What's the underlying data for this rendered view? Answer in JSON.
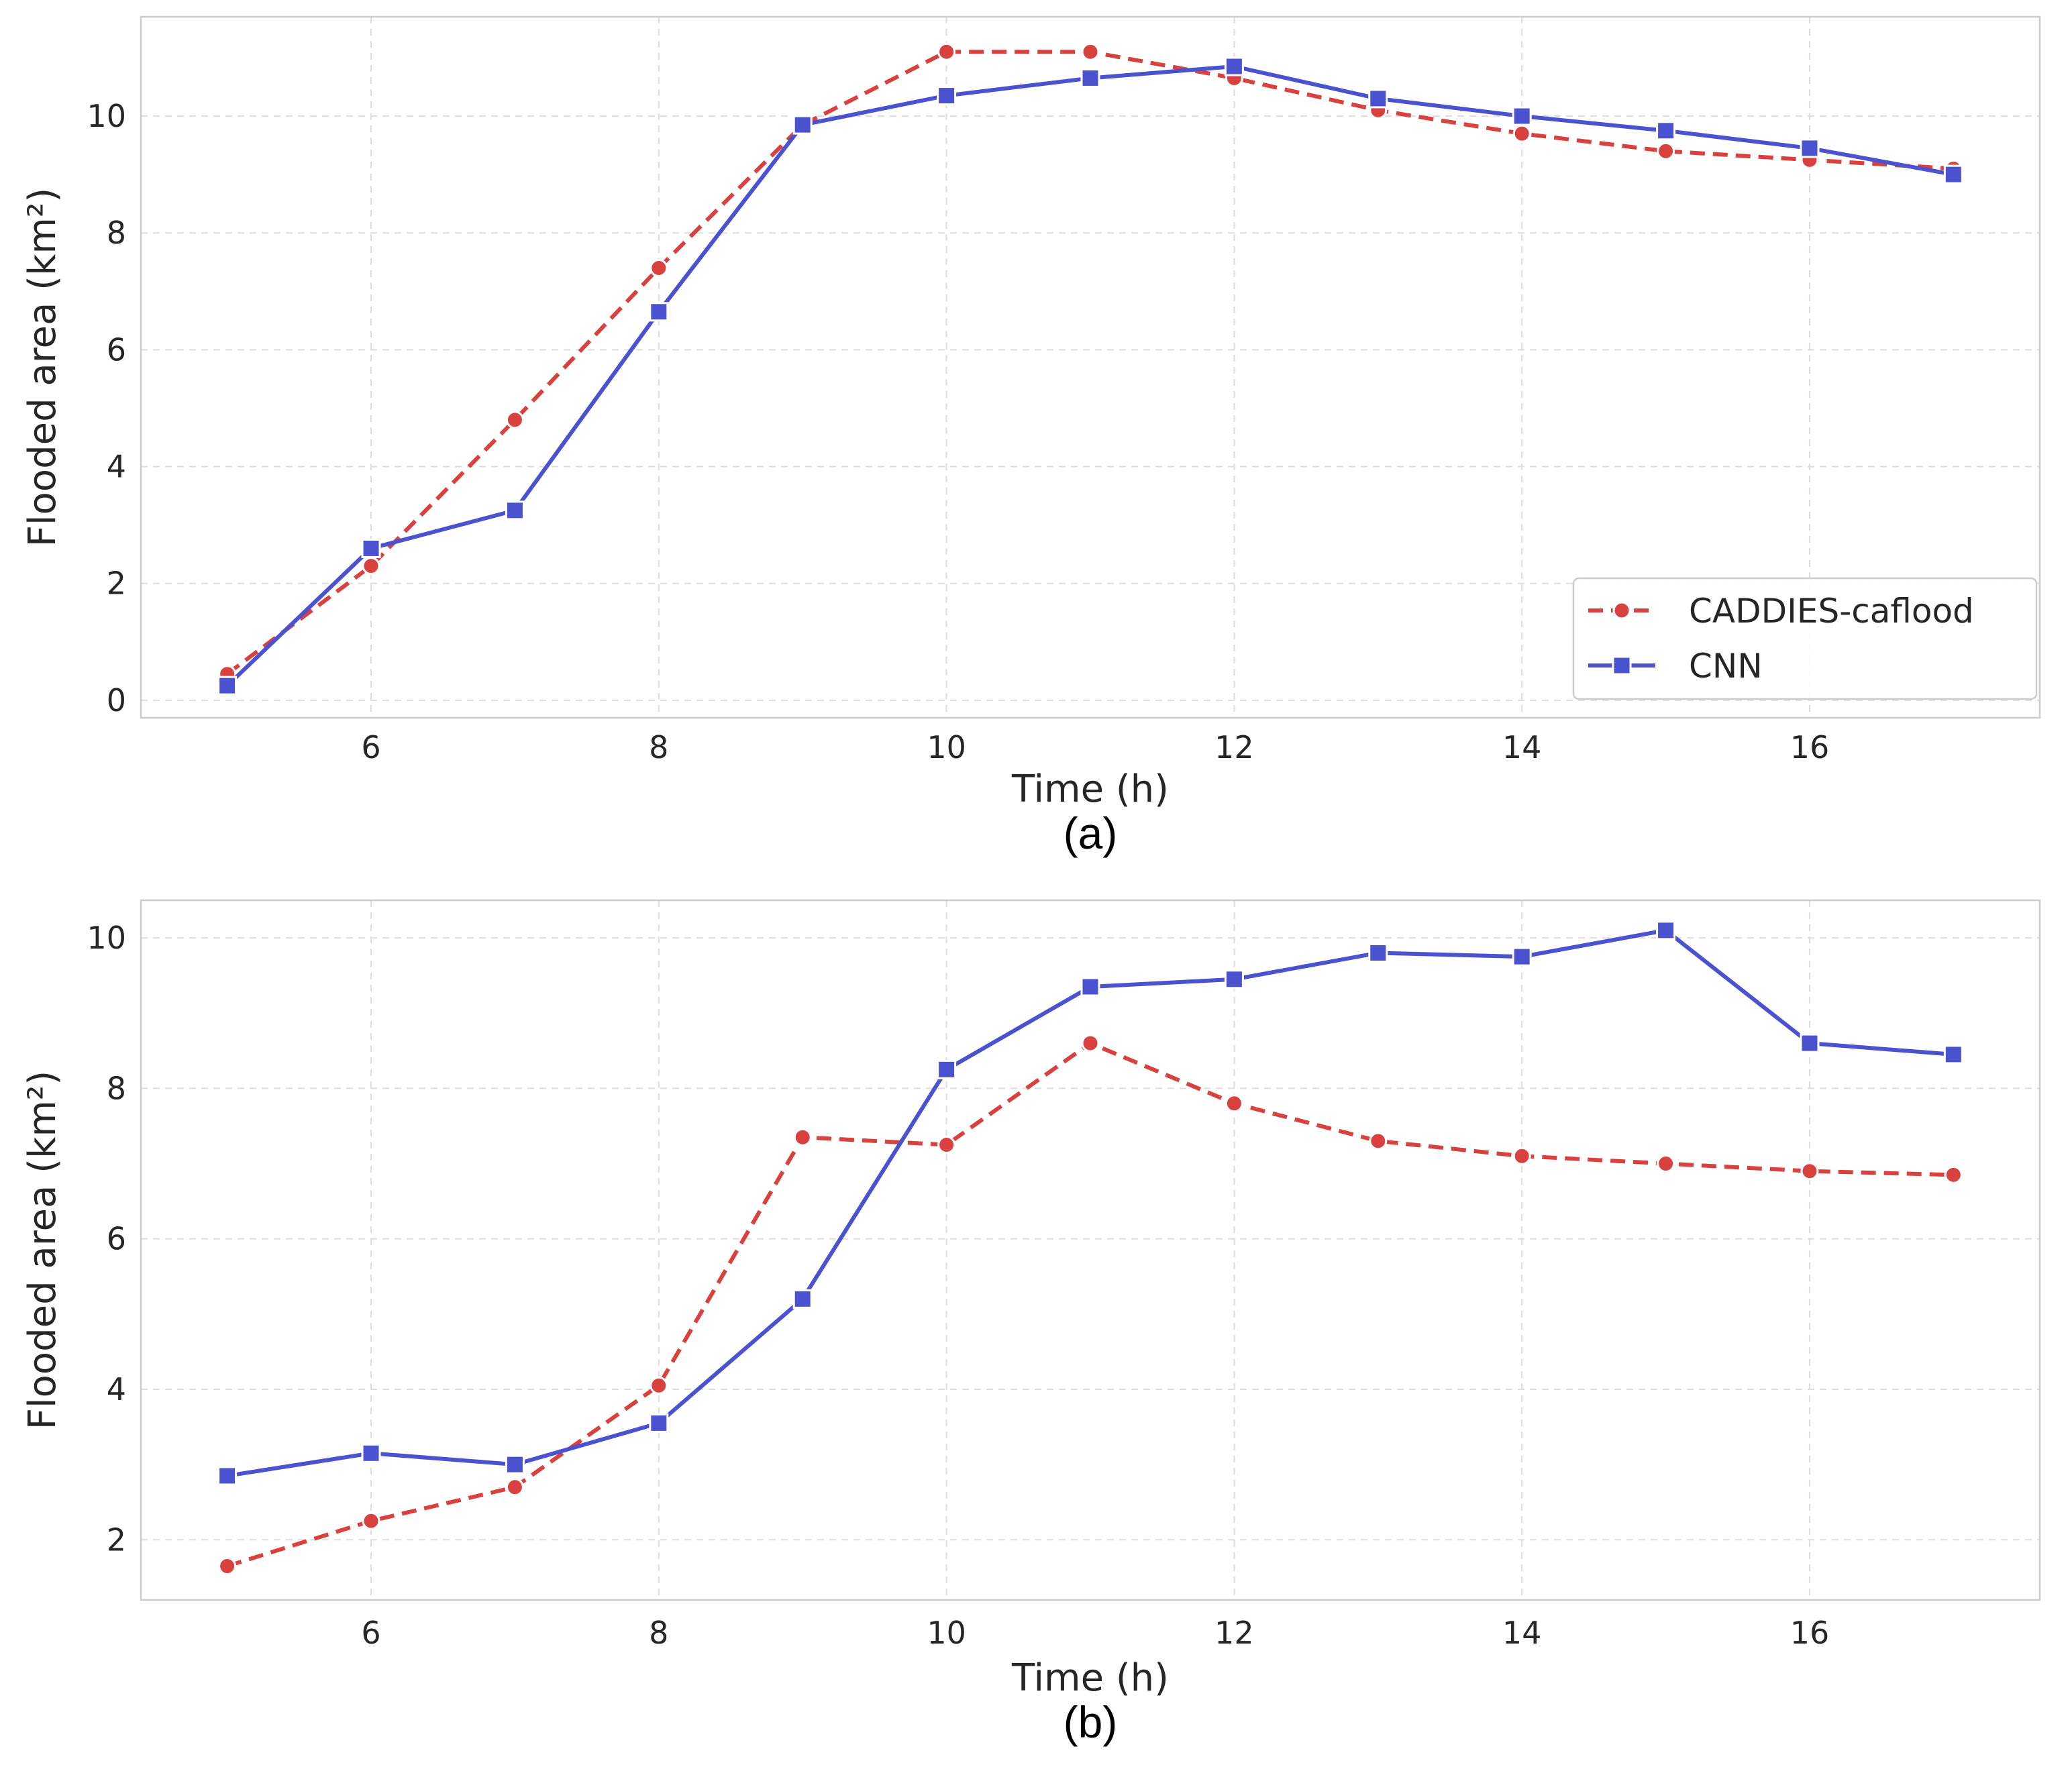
{
  "colors": {
    "caddies": "#d9413f",
    "cnn": "#4b52cf",
    "grid": "#dddddd",
    "frame": "#cccccc",
    "text": "#262626"
  },
  "legend": {
    "labels": [
      "CADDIES-caflood",
      "CNN"
    ],
    "placement": "lower-right"
  },
  "chart_data": [
    {
      "type": "line",
      "caption": "(a)",
      "xlabel": "Time (h)",
      "ylabel": "Flooded area (km²)",
      "x": [
        5,
        6,
        7,
        8,
        9,
        10,
        11,
        12,
        13,
        14,
        15,
        16,
        17
      ],
      "xlim": [
        4.4,
        17.6
      ],
      "ylim": [
        -0.3,
        11.7
      ],
      "xticks": [
        6,
        8,
        10,
        12,
        14,
        16
      ],
      "yticks": [
        0,
        2,
        4,
        6,
        8,
        10
      ],
      "grid": true,
      "series": [
        {
          "name": "CADDIES-caflood",
          "marker": "circle",
          "linestyle": "dashed",
          "values": [
            0.45,
            2.3,
            4.8,
            7.4,
            9.85,
            11.1,
            11.1,
            10.65,
            10.1,
            9.7,
            9.4,
            9.25,
            9.1
          ]
        },
        {
          "name": "CNN",
          "marker": "square",
          "linestyle": "solid",
          "values": [
            0.25,
            2.6,
            3.25,
            6.65,
            9.85,
            10.35,
            10.65,
            10.85,
            10.3,
            10.0,
            9.75,
            9.45,
            9.0
          ]
        }
      ]
    },
    {
      "type": "line",
      "caption": "(b)",
      "xlabel": "Time (h)",
      "ylabel": "Flooded area (km²)",
      "x": [
        5,
        6,
        7,
        8,
        9,
        10,
        11,
        12,
        13,
        14,
        15,
        16,
        17
      ],
      "xlim": [
        4.4,
        17.6
      ],
      "ylim": [
        1.2,
        10.5
      ],
      "xticks": [
        6,
        8,
        10,
        12,
        14,
        16
      ],
      "yticks": [
        2,
        4,
        6,
        8,
        10
      ],
      "grid": true,
      "series": [
        {
          "name": "CADDIES-caflood",
          "marker": "circle",
          "linestyle": "dashed",
          "values": [
            1.65,
            2.25,
            2.7,
            4.05,
            7.35,
            7.25,
            8.6,
            7.8,
            7.3,
            7.1,
            7.0,
            6.9,
            6.85
          ]
        },
        {
          "name": "CNN",
          "marker": "square",
          "linestyle": "solid",
          "values": [
            2.85,
            3.15,
            3.0,
            3.55,
            5.2,
            8.25,
            9.35,
            9.45,
            9.8,
            9.75,
            10.1,
            8.6,
            8.45
          ]
        }
      ]
    }
  ]
}
